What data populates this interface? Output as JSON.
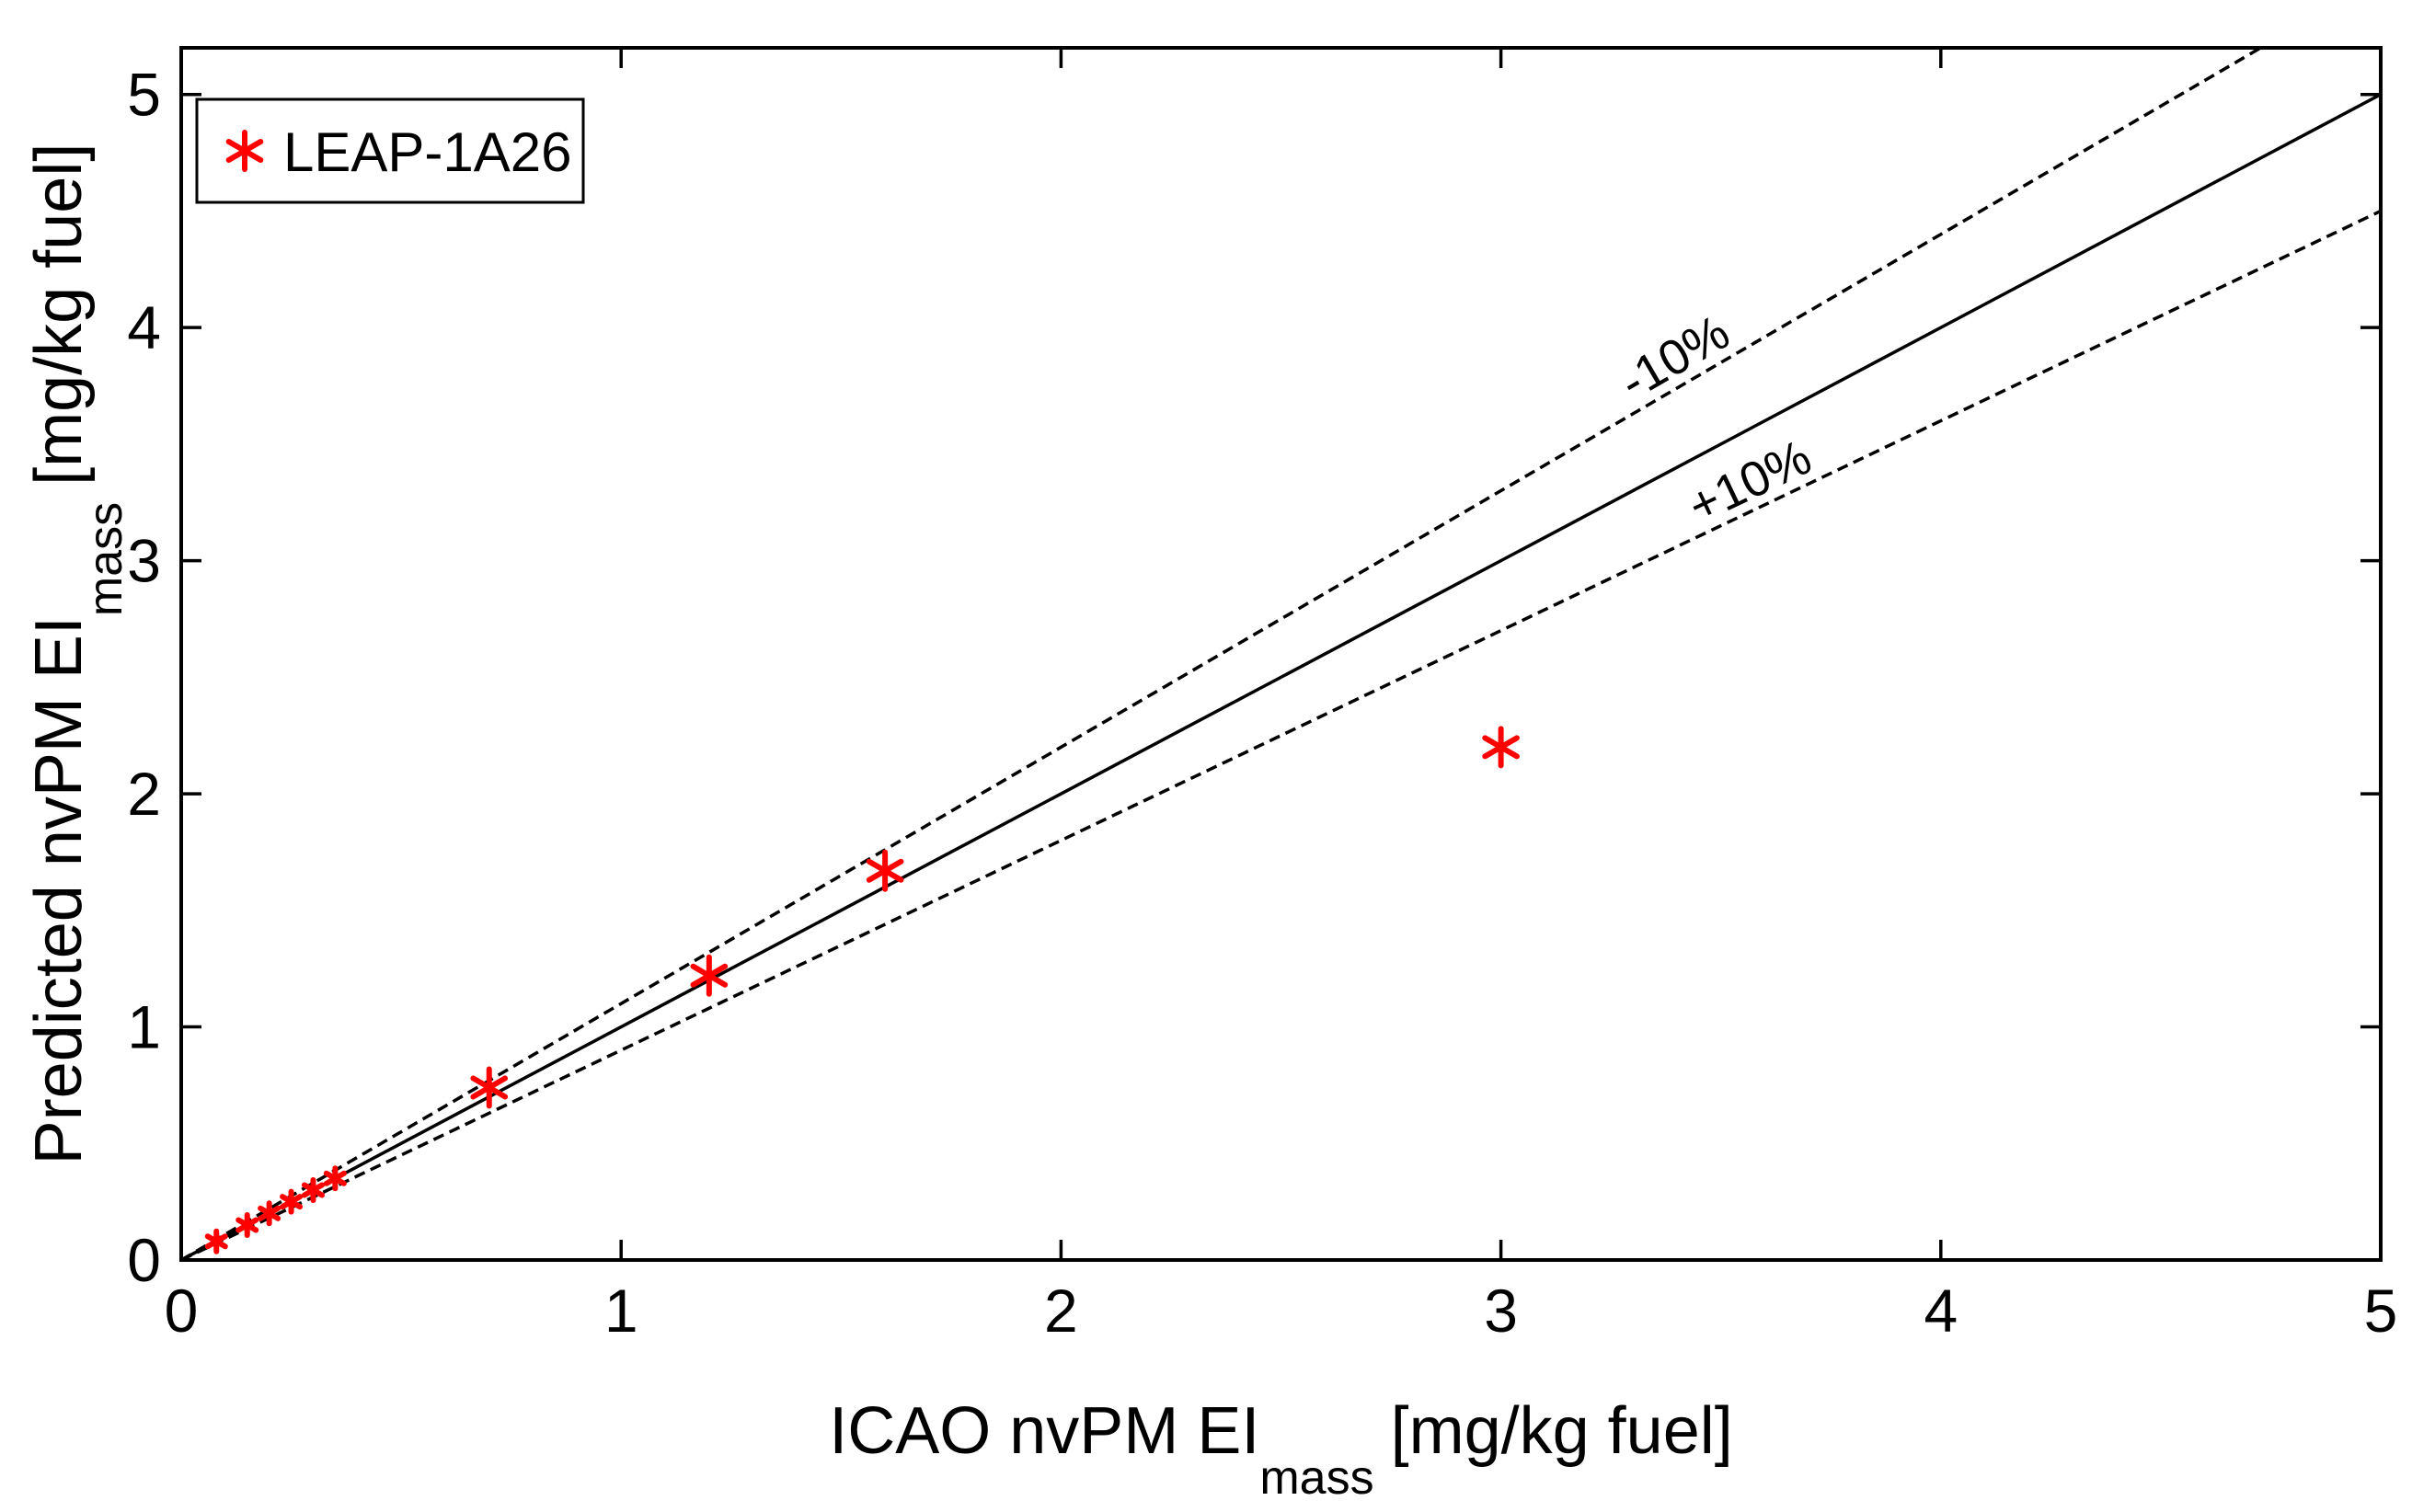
{
  "chart_data": {
    "type": "scatter",
    "title": "",
    "xlabel": {
      "main": "ICAO nvPM EI",
      "sub": "mass",
      "unit": "[mg/kg fuel]"
    },
    "ylabel": {
      "main": "Predicted nvPM EI",
      "sub": "mass",
      "unit": "[mg/kg fuel]"
    },
    "xlim": [
      0,
      5
    ],
    "ylim": [
      0,
      5.2
    ],
    "xticks": [
      0,
      1,
      2,
      3,
      4,
      5
    ],
    "yticks": [
      0,
      1,
      2,
      3,
      4,
      5
    ],
    "xtick_labels": [
      "0",
      "1",
      "2",
      "3",
      "4",
      "5"
    ],
    "ytick_labels": [
      "0",
      "1",
      "2",
      "3",
      "4",
      "5"
    ],
    "grid": false,
    "legend_position": "top-left",
    "series": [
      {
        "name": "LEAP-1A26",
        "marker": "asterisk",
        "color": "#ff0000",
        "x": [
          0.08,
          0.15,
          0.2,
          0.25,
          0.3,
          0.35,
          0.7,
          1.2,
          1.6,
          3.0
        ],
        "y": [
          0.08,
          0.15,
          0.2,
          0.25,
          0.3,
          0.35,
          0.74,
          1.22,
          1.67,
          2.2
        ]
      }
    ],
    "reference_lines": [
      {
        "name": "1:1",
        "slope": 1.0,
        "style": "solid",
        "color": "#000000"
      },
      {
        "name": "-10%",
        "slope": 1.1,
        "style": "dashed",
        "color": "#000000"
      },
      {
        "name": "+10%",
        "slope": 0.9,
        "style": "dashed",
        "color": "#000000"
      }
    ],
    "annotations": [
      {
        "text": "-10%",
        "x": 3.3,
        "y": 3.63
      },
      {
        "text": "+10%",
        "x": 3.45,
        "y": 3.1
      }
    ]
  }
}
